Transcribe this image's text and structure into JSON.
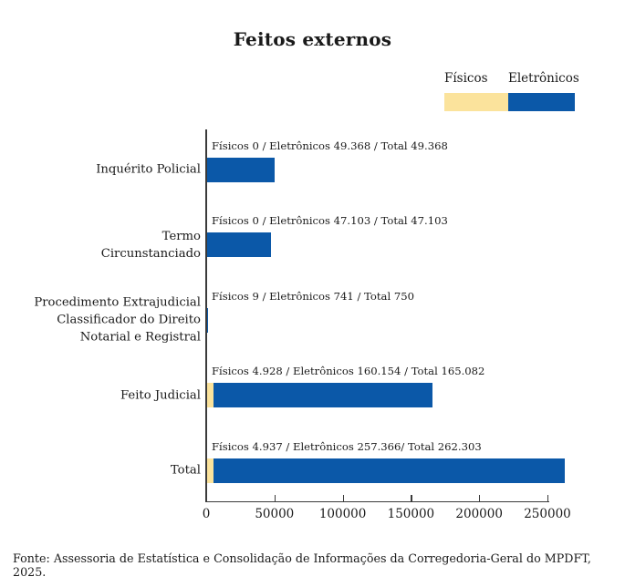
{
  "title": "Feitos externos",
  "footer": "Fonte: Assessoria de Estatística e Consolidação de Informações da Corregedoria-Geral do MPDFT, 2025.",
  "colors": {
    "fisicos": "#fbe39c",
    "eletronicos": "#0b58a8",
    "axis": "#3a3a3a",
    "text": "#1a1a1a"
  },
  "legend": {
    "items": [
      {
        "label": "Físicos",
        "color": "#fbe39c",
        "swatch_width": 70
      },
      {
        "label": "Eletrônicos",
        "color": "#0b58a8",
        "swatch_width": 73
      }
    ]
  },
  "chart_data": {
    "type": "bar",
    "orientation": "horizontal",
    "stacked": true,
    "title": "Feitos externos",
    "xlabel": "",
    "ylabel": "",
    "grid": false,
    "legend_position": "top-right",
    "xlim": [
      0,
      250000
    ],
    "x_ticks": [
      0,
      50000,
      100000,
      150000,
      200000,
      250000
    ],
    "x_tick_labels": [
      "0",
      "50000",
      "100000",
      "150000",
      "200000",
      "250000"
    ],
    "categories": [
      "Inquérito Policial",
      "Termo\nCircunstanciado",
      "Procedimento Extrajudicial\nClassificador do Direito\nNotarial e Registral",
      "Feito Judicial",
      "Total"
    ],
    "series": [
      {
        "name": "Físicos",
        "color": "#fbe39c",
        "values": [
          0,
          0,
          9,
          4928,
          4937
        ]
      },
      {
        "name": "Eletrônicos",
        "color": "#0b58a8",
        "values": [
          49368,
          47103,
          741,
          160154,
          257366
        ]
      }
    ],
    "totals": [
      49368,
      47103,
      750,
      165082,
      262303
    ],
    "annotations": [
      "Físicos 0 / Eletrônicos 49.368 / Total 49.368",
      "Físicos 0 / Eletrônicos 47.103 / Total 47.103",
      "Físicos 9 / Eletrônicos 741 / Total 750",
      "Físicos 4.928 / Eletrônicos 160.154 / Total 165.082",
      "Físicos 4.937 / Eletrônicos 257.366/ Total 262.303"
    ]
  }
}
